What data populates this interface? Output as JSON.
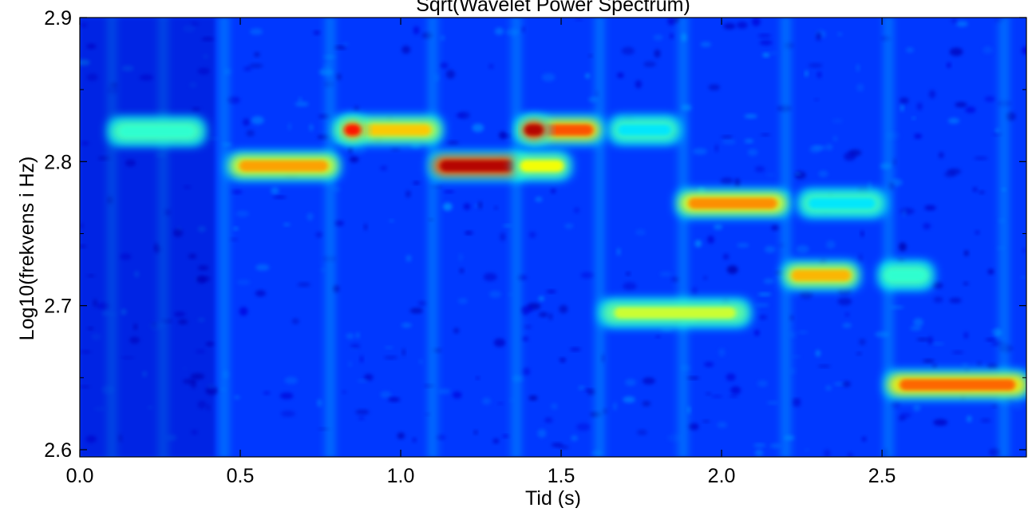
{
  "chart_data": {
    "type": "heatmap",
    "title": "Sqrt(Wavelet Power Spectrum)",
    "xlabel": "Tid (s)",
    "ylabel": "Log10(frekvens i Hz)",
    "xlim": [
      0.0,
      2.95
    ],
    "ylim": [
      2.595,
      2.9
    ],
    "x_ticks": [
      0.0,
      0.5,
      1.0,
      1.5,
      2.0,
      2.5
    ],
    "x_tick_labels": [
      "0.0",
      "0.5",
      "1.0",
      "1.5",
      "2.0",
      "2.5"
    ],
    "y_ticks": [
      2.6,
      2.7,
      2.8,
      2.9
    ],
    "y_tick_labels": [
      "2.6",
      "2.7",
      "2.8",
      "2.9"
    ],
    "y_minor_ticks": [
      2.65,
      2.75,
      2.85
    ],
    "grid": false,
    "colormap": "jet",
    "background_level": 0.12,
    "colors": {
      "low": "#2a3fa8",
      "mid": "#5bd6e8",
      "high": "#f7e84a",
      "peak": "#d01818"
    },
    "spectral_bands": [
      {
        "x_start": 0.1,
        "x_end": 0.38,
        "y": 2.821,
        "intensity": 0.42
      },
      {
        "x_start": 0.47,
        "x_end": 0.8,
        "y": 2.797,
        "intensity": 0.72
      },
      {
        "x_start": 0.8,
        "x_end": 1.12,
        "y": 2.822,
        "intensity": 0.68
      },
      {
        "x_start": 0.82,
        "x_end": 0.88,
        "y": 2.822,
        "intensity": 0.86
      },
      {
        "x_start": 1.1,
        "x_end": 1.38,
        "y": 2.797,
        "intensity": 0.95
      },
      {
        "x_start": 1.36,
        "x_end": 1.52,
        "y": 2.797,
        "intensity": 0.62
      },
      {
        "x_start": 1.37,
        "x_end": 1.62,
        "y": 2.822,
        "intensity": 0.8
      },
      {
        "x_start": 1.38,
        "x_end": 1.45,
        "y": 2.822,
        "intensity": 0.95
      },
      {
        "x_start": 1.66,
        "x_end": 1.86,
        "y": 2.822,
        "intensity": 0.35
      },
      {
        "x_start": 1.63,
        "x_end": 2.08,
        "y": 2.695,
        "intensity": 0.58
      },
      {
        "x_start": 1.87,
        "x_end": 2.2,
        "y": 2.771,
        "intensity": 0.74
      },
      {
        "x_start": 2.25,
        "x_end": 2.5,
        "y": 2.771,
        "intensity": 0.35
      },
      {
        "x_start": 2.2,
        "x_end": 2.42,
        "y": 2.721,
        "intensity": 0.7
      },
      {
        "x_start": 2.5,
        "x_end": 2.65,
        "y": 2.721,
        "intensity": 0.42
      },
      {
        "x_start": 2.52,
        "x_end": 2.95,
        "y": 2.645,
        "intensity": 0.78
      }
    ],
    "onset_streaks": [
      0.1,
      0.26,
      0.45,
      0.78,
      1.1,
      1.36,
      1.62,
      1.88,
      2.2,
      2.52,
      2.88
    ]
  }
}
